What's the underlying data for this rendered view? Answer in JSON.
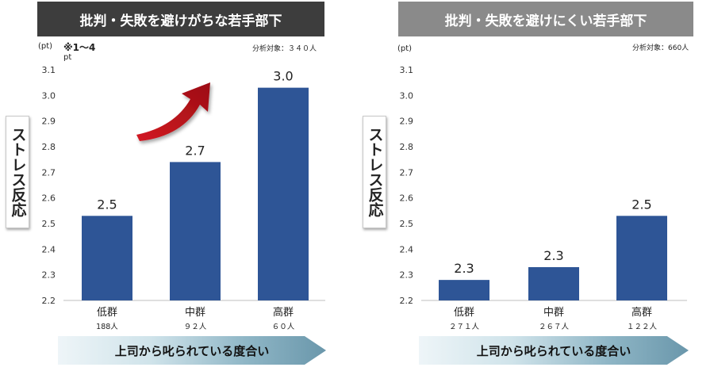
{
  "chart_data": [
    {
      "type": "bar",
      "title": "批判・失敗を避けがちな若手部下",
      "unit": "(pt)",
      "note": "※1～4",
      "note_unit": "pt",
      "sample_text": "分析対象：３４０人",
      "ylabel": "ストレス反応",
      "xlabel": "上司から叱られている度合い",
      "ylim": [
        2.2,
        3.1
      ],
      "yticks": [
        "3.1",
        "3.0",
        "2.9",
        "2.8",
        "2.7",
        "2.6",
        "2.5",
        "2.4",
        "2.3",
        "2.2"
      ],
      "categories": [
        "低群",
        "中群",
        "高群"
      ],
      "counts": [
        "188人",
        "９２人",
        "６０人"
      ],
      "values": [
        2.53,
        2.74,
        3.03
      ],
      "value_labels": [
        "2.5",
        "2.7",
        "3.0"
      ],
      "bar_color": "#2e5596",
      "arrow_color": "#c0121b"
    },
    {
      "type": "bar",
      "title": "批判・失敗を避けにくい若手部下",
      "unit": "(pt)",
      "sample_text": "分析対象：660人",
      "ylabel": "ストレス反応",
      "xlabel": "上司から叱られている度合い",
      "ylim": [
        2.2,
        3.1
      ],
      "yticks": [
        "3.1",
        "3.0",
        "2.9",
        "2.8",
        "2.7",
        "2.6",
        "2.5",
        "2.4",
        "2.3",
        "2.2"
      ],
      "categories": [
        "低群",
        "中群",
        "高群"
      ],
      "counts": [
        "２７１人",
        "２６７人",
        "１２２人"
      ],
      "values": [
        2.28,
        2.33,
        2.53
      ],
      "value_labels": [
        "2.3",
        "2.3",
        "2.5"
      ],
      "bar_color": "#2e5596"
    }
  ]
}
